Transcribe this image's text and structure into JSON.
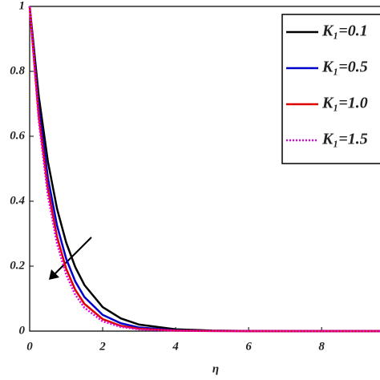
{
  "chart_data": {
    "type": "line",
    "x_label": "η",
    "x": [
      0,
      0.25,
      0.5,
      0.75,
      1,
      1.25,
      1.5,
      2,
      2.5,
      3,
      4,
      5,
      6,
      7,
      8,
      9,
      9.6
    ],
    "series": [
      {
        "name": "K₁=0.1",
        "color": "#000000",
        "dash": false,
        "values": [
          1,
          0.723,
          0.522,
          0.377,
          0.273,
          0.197,
          0.142,
          0.074,
          0.039,
          0.02,
          0.0055,
          0.0015,
          0.0004,
          0.0001,
          0,
          0,
          0
        ]
      },
      {
        "name": "K₁=0.5",
        "color": "#0000cc",
        "dash": false,
        "values": [
          1,
          0.687,
          0.472,
          0.325,
          0.223,
          0.153,
          0.105,
          0.05,
          0.024,
          0.011,
          0.0025,
          0.0006,
          0.0001,
          0,
          0,
          0,
          0
        ]
      },
      {
        "name": "K₁=1.0",
        "color": "#e00000",
        "dash": false,
        "values": [
          1,
          0.662,
          0.438,
          0.29,
          0.192,
          0.127,
          0.084,
          0.037,
          0.016,
          0.007,
          0.0014,
          0.0003,
          0,
          0,
          0,
          0,
          0
        ]
      },
      {
        "name": "K₁=1.5",
        "color": "#e000e0",
        "dash": true,
        "values": [
          1,
          0.646,
          0.417,
          0.269,
          0.174,
          0.112,
          0.072,
          0.03,
          0.013,
          0.005,
          0.0009,
          0.0002,
          0,
          0,
          0,
          0,
          0
        ]
      }
    ],
    "xlim": [
      0,
      9.6
    ],
    "ylim": [
      0,
      1
    ],
    "xticks": [
      0,
      2,
      4,
      6,
      8
    ],
    "yticks": [
      0,
      0.2,
      0.4,
      0.6,
      0.8,
      1
    ]
  }
}
